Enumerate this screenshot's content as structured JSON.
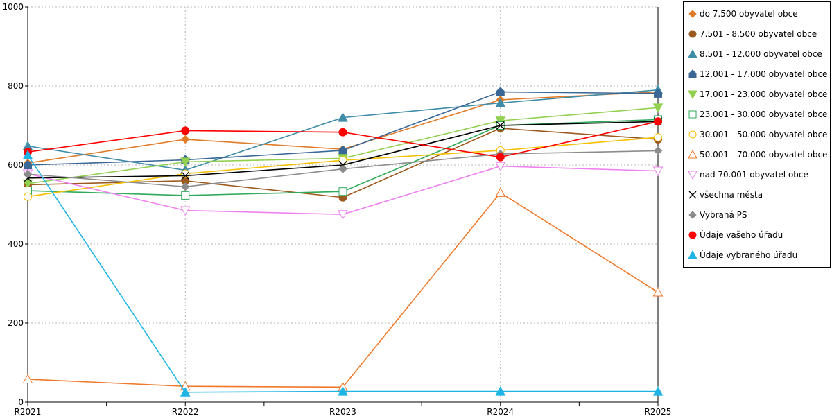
{
  "chart_data": {
    "type": "line",
    "categories": [
      "R2021",
      "R2022",
      "R2023",
      "R2024",
      "R2025"
    ],
    "ylim": [
      0,
      1000
    ],
    "yticks": [
      "0",
      "200",
      "400",
      "600",
      "800",
      "1000"
    ],
    "grid": true,
    "legend_position": "right",
    "series": [
      {
        "name": "do 7.500 obyvatel obce",
        "values": [
          605,
          665,
          640,
          765,
          785
        ],
        "color": "#E07B28",
        "marker": "diamond"
      },
      {
        "name": "7.501 - 8.500 obyvatel obce",
        "values": [
          550,
          560,
          518,
          693,
          665
        ],
        "color": "#9C5A1E",
        "marker": "circle"
      },
      {
        "name": "8.501 - 12.000 obyvatel obce",
        "values": [
          648,
          587,
          720,
          757,
          790
        ],
        "color": "#3E8CA8",
        "marker": "triangle"
      },
      {
        "name": "12.001 - 17.000 obyvatel obce",
        "values": [
          600,
          613,
          637,
          785,
          781
        ],
        "color": "#3A6795",
        "marker": "pentagon"
      },
      {
        "name": "17.001 - 23.000 obyvatel obce",
        "values": [
          553,
          608,
          617,
          712,
          745
        ],
        "color": "#92D050",
        "marker": "triangle-down"
      },
      {
        "name": "23.001 - 30.000 obyvatel obce",
        "values": [
          535,
          523,
          533,
          700,
          715
        ],
        "color": "#2EAA5A",
        "marker": "square-open"
      },
      {
        "name": "30.001 - 50.000 obyvatel obce",
        "values": [
          520,
          578,
          612,
          637,
          670
        ],
        "color": "#F5C000",
        "marker": "circle-open"
      },
      {
        "name": "50.001 - 70.000 obyvatel obce",
        "values": [
          58,
          40,
          38,
          530,
          278
        ],
        "color": "#F07828",
        "marker": "triangle-open"
      },
      {
        "name": "nad 70.001 obyvatel obce",
        "values": [
          578,
          485,
          475,
          597,
          585
        ],
        "color": "#EE82EE",
        "marker": "triangle-down-open"
      },
      {
        "name": "všechna města",
        "values": [
          567,
          573,
          600,
          700,
          710
        ],
        "color": "#000000",
        "marker": "x"
      },
      {
        "name": "Vybraná PS",
        "values": [
          577,
          545,
          590,
          628,
          636
        ],
        "color": "#8C8C8C",
        "marker": "diamond"
      },
      {
        "name": "Údaje vašeho úřadu",
        "values": [
          633,
          687,
          683,
          620,
          710
        ],
        "color": "#FF0000",
        "marker": "circle"
      },
      {
        "name": "Údaje vybraného úřadu",
        "values": [
          625,
          25,
          27,
          27,
          27
        ],
        "color": "#1EB4E6",
        "marker": "triangle"
      }
    ]
  }
}
